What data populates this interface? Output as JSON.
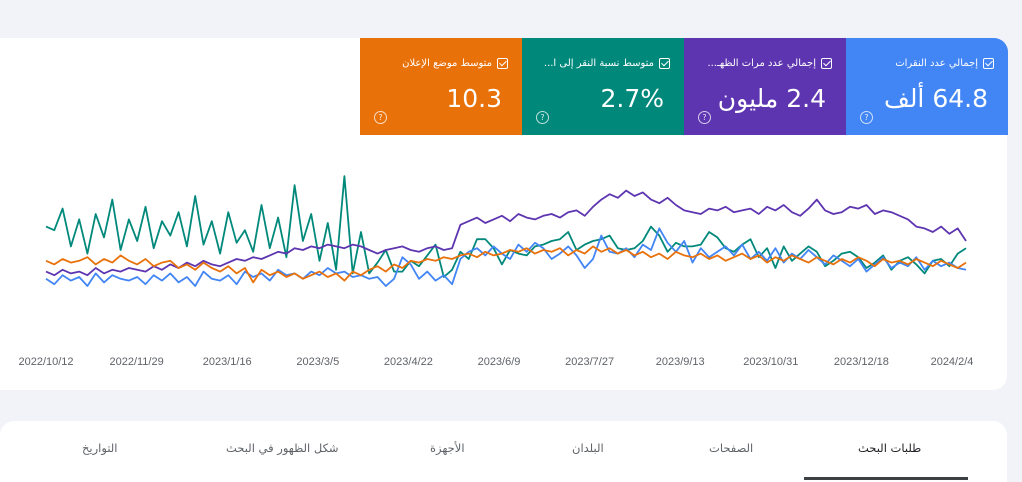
{
  "metrics": [
    {
      "id": "clicks",
      "label": "إجمالي عدد النقرات",
      "value": "64.8 ألف",
      "color": "#4285f4",
      "checked": true
    },
    {
      "id": "impressions",
      "label": "إجمالي عدد مرات الظهـ...",
      "value": "2.4 مليون",
      "color": "#5e35b1",
      "checked": true
    },
    {
      "id": "ctr",
      "label": "متوسط نسبة النقر إلى ا...",
      "value": "2.7%",
      "color": "#00897b",
      "checked": true
    },
    {
      "id": "position",
      "label": "متوسط موضع الإعلان",
      "value": "10.3",
      "color": "#e8710a",
      "checked": true
    }
  ],
  "help_icon": "?",
  "chart_data": {
    "type": "line",
    "x_tick_labels": [
      "2022/10/12",
      "2022/11/29",
      "2023/1/16",
      "2023/3/5",
      "2023/4/22",
      "2023/6/9",
      "2023/7/27",
      "2023/9/13",
      "2023/10/31",
      "2023/12/18",
      "2024/2/4"
    ],
    "x_range": [
      "2022/10/12",
      "2024/2/10"
    ],
    "y_axis_visible": false,
    "grid": false,
    "series": [
      {
        "metric": "ctr",
        "color": "#00897b",
        "values": [
          0.63,
          0.61,
          0.73,
          0.52,
          0.67,
          0.48,
          0.7,
          0.57,
          0.78,
          0.5,
          0.67,
          0.55,
          0.74,
          0.51,
          0.66,
          0.58,
          0.71,
          0.52,
          0.8,
          0.53,
          0.66,
          0.48,
          0.71,
          0.54,
          0.61,
          0.49,
          0.75,
          0.51,
          0.68,
          0.46,
          0.86,
          0.55,
          0.7,
          0.44,
          0.65,
          0.39,
          0.91,
          0.37,
          0.6,
          0.37,
          0.43,
          0.5,
          0.38,
          0.38,
          0.44,
          0.41,
          0.47,
          0.53,
          0.35,
          0.39,
          0.49,
          0.45,
          0.56,
          0.56,
          0.51,
          0.42,
          0.5,
          0.48,
          0.47,
          0.52,
          0.53,
          0.55,
          0.56,
          0.6,
          0.5,
          0.53,
          0.55,
          0.56,
          0.58,
          0.51,
          0.5,
          0.51,
          0.55,
          0.63,
          0.58,
          0.49,
          0.54,
          0.52,
          0.52,
          0.53,
          0.6,
          0.57,
          0.51,
          0.49,
          0.53,
          0.56,
          0.46,
          0.51,
          0.4,
          0.52,
          0.44,
          0.48,
          0.52,
          0.49,
          0.41,
          0.44,
          0.48,
          0.49,
          0.46,
          0.4,
          0.43,
          0.47,
          0.39,
          0.44,
          0.46,
          0.42,
          0.37,
          0.44,
          0.45,
          0.41,
          0.48,
          0.51
        ]
      },
      {
        "metric": "impressions",
        "color": "#5e35b1",
        "values": [
          0.38,
          0.36,
          0.39,
          0.37,
          0.38,
          0.36,
          0.4,
          0.37,
          0.39,
          0.38,
          0.4,
          0.39,
          0.38,
          0.41,
          0.39,
          0.42,
          0.4,
          0.43,
          0.41,
          0.44,
          0.42,
          0.41,
          0.43,
          0.45,
          0.44,
          0.46,
          0.45,
          0.47,
          0.49,
          0.48,
          0.51,
          0.5,
          0.52,
          0.51,
          0.53,
          0.52,
          0.51,
          0.53,
          0.52,
          0.5,
          0.48,
          0.5,
          0.51,
          0.52,
          0.5,
          0.49,
          0.51,
          0.52,
          0.5,
          0.51,
          0.64,
          0.66,
          0.68,
          0.65,
          0.67,
          0.69,
          0.66,
          0.7,
          0.68,
          0.67,
          0.69,
          0.7,
          0.68,
          0.71,
          0.72,
          0.69,
          0.74,
          0.78,
          0.81,
          0.79,
          0.83,
          0.8,
          0.82,
          0.78,
          0.76,
          0.79,
          0.75,
          0.72,
          0.71,
          0.7,
          0.73,
          0.72,
          0.74,
          0.71,
          0.72,
          0.73,
          0.7,
          0.74,
          0.72,
          0.75,
          0.71,
          0.69,
          0.73,
          0.78,
          0.72,
          0.7,
          0.71,
          0.74,
          0.73,
          0.75,
          0.7,
          0.72,
          0.71,
          0.69,
          0.67,
          0.63,
          0.62,
          0.6,
          0.63,
          0.59,
          0.62,
          0.55
        ]
      },
      {
        "metric": "clicks",
        "color": "#4285f4",
        "values": [
          0.34,
          0.31,
          0.36,
          0.33,
          0.35,
          0.3,
          0.37,
          0.32,
          0.36,
          0.34,
          0.33,
          0.35,
          0.31,
          0.36,
          0.33,
          0.37,
          0.32,
          0.35,
          0.3,
          0.38,
          0.34,
          0.33,
          0.36,
          0.31,
          0.38,
          0.35,
          0.37,
          0.33,
          0.39,
          0.36,
          0.37,
          0.34,
          0.38,
          0.36,
          0.4,
          0.37,
          0.38,
          0.35,
          0.36,
          0.34,
          0.35,
          0.3,
          0.34,
          0.46,
          0.42,
          0.34,
          0.38,
          0.33,
          0.36,
          0.31,
          0.45,
          0.49,
          0.51,
          0.47,
          0.52,
          0.48,
          0.45,
          0.53,
          0.49,
          0.54,
          0.51,
          0.45,
          0.48,
          0.52,
          0.47,
          0.4,
          0.45,
          0.58,
          0.49,
          0.48,
          0.51,
          0.46,
          0.53,
          0.5,
          0.62,
          0.54,
          0.49,
          0.55,
          0.43,
          0.51,
          0.46,
          0.49,
          0.52,
          0.47,
          0.53,
          0.45,
          0.49,
          0.44,
          0.51,
          0.43,
          0.48,
          0.45,
          0.5,
          0.46,
          0.42,
          0.47,
          0.44,
          0.41,
          0.45,
          0.38,
          0.42,
          0.46,
          0.4,
          0.43,
          0.41,
          0.46,
          0.39,
          0.44,
          0.41,
          0.43,
          0.4,
          0.39
        ]
      },
      {
        "metric": "position",
        "color": "#e8710a",
        "values": [
          0.44,
          0.42,
          0.45,
          0.43,
          0.44,
          0.46,
          0.42,
          0.45,
          0.43,
          0.47,
          0.44,
          0.42,
          0.45,
          0.41,
          0.43,
          0.44,
          0.4,
          0.42,
          0.39,
          0.43,
          0.4,
          0.38,
          0.41,
          0.37,
          0.4,
          0.32,
          0.39,
          0.36,
          0.38,
          0.35,
          0.37,
          0.34,
          0.36,
          0.38,
          0.35,
          0.37,
          0.33,
          0.38,
          0.36,
          0.39,
          0.41,
          0.38,
          0.42,
          0.4,
          0.44,
          0.43,
          0.45,
          0.44,
          0.46,
          0.45,
          0.47,
          0.48,
          0.46,
          0.49,
          0.47,
          0.48,
          0.5,
          0.49,
          0.51,
          0.48,
          0.5,
          0.49,
          0.51,
          0.47,
          0.5,
          0.48,
          0.52,
          0.49,
          0.51,
          0.48,
          0.5,
          0.47,
          0.49,
          0.46,
          0.48,
          0.45,
          0.49,
          0.47,
          0.46,
          0.48,
          0.45,
          0.47,
          0.44,
          0.46,
          0.48,
          0.45,
          0.47,
          0.43,
          0.46,
          0.44,
          0.47,
          0.45,
          0.43,
          0.46,
          0.44,
          0.42,
          0.45,
          0.43,
          0.46,
          0.44,
          0.41,
          0.45,
          0.43,
          0.44,
          0.42,
          0.45,
          0.43,
          0.41,
          0.44,
          0.42,
          0.4,
          0.43
        ]
      }
    ]
  },
  "tabs": [
    {
      "label": "طلبات البحث",
      "active": true
    },
    {
      "label": "الصفحات",
      "active": false
    },
    {
      "label": "البلدان",
      "active": false
    },
    {
      "label": "الأجهزة",
      "active": false
    },
    {
      "label": "شكل الظهور في البحث",
      "active": false
    },
    {
      "label": "التواريخ",
      "active": false
    }
  ]
}
